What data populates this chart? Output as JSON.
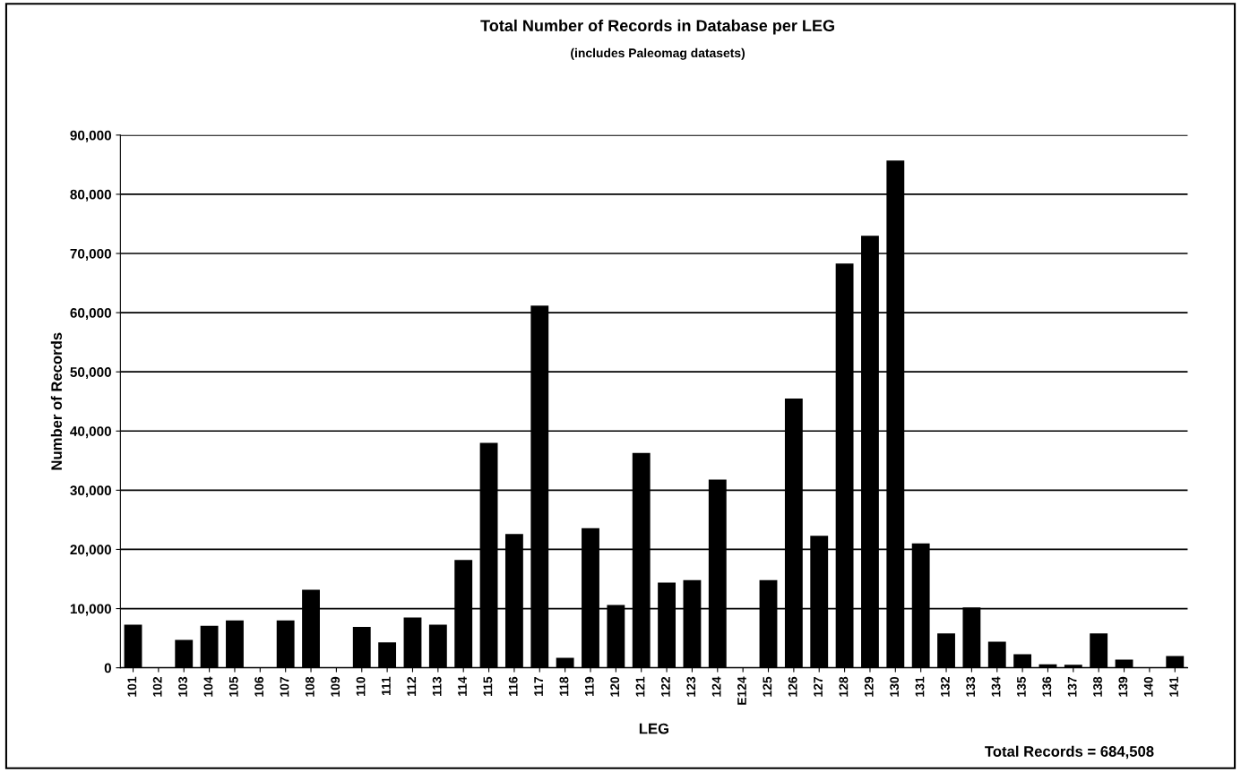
{
  "chart_data": {
    "type": "bar",
    "title": "Total Number of Records in Database per LEG",
    "subtitle": "(includes Paleomag datasets)",
    "xlabel": "LEG",
    "ylabel": "Number of Records",
    "categories": [
      "101",
      "102",
      "103",
      "104",
      "105",
      "106",
      "107",
      "108",
      "109",
      "110",
      "111",
      "112",
      "113",
      "114",
      "115",
      "116",
      "117",
      "118",
      "119",
      "120",
      "121",
      "122",
      "123",
      "124",
      "E124",
      "125",
      "126",
      "127",
      "128",
      "129",
      "130",
      "131",
      "132",
      "133",
      "134",
      "135",
      "136",
      "137",
      "138",
      "139",
      "140",
      "141"
    ],
    "values": [
      7300,
      0,
      4700,
      7100,
      8000,
      0,
      8000,
      13200,
      0,
      6900,
      4300,
      8500,
      7300,
      18200,
      38000,
      22600,
      61200,
      1700,
      23600,
      10600,
      36300,
      14400,
      14800,
      31800,
      0,
      14800,
      45500,
      22300,
      68300,
      73000,
      85700,
      21000,
      5800,
      10200,
      4400,
      2300,
      600,
      500,
      5800,
      1400,
      0,
      2000
    ],
    "color": "#000000",
    "ylim": [
      0,
      90000
    ],
    "yticks": [
      0,
      {
        "value": 10000,
        "label": "10,000"
      },
      {
        "value": 20000,
        "label": "20,000"
      },
      {
        "value": 30000,
        "label": "30,000"
      },
      {
        "value": 40000,
        "label": "40,000"
      },
      {
        "value": 50000,
        "label": "50,000"
      },
      {
        "value": 60000,
        "label": "60,000"
      },
      {
        "value": 70000,
        "label": "70,000"
      },
      {
        "value": 80000,
        "label": "80,000"
      },
      {
        "value": 90000,
        "label": "90,000"
      }
    ],
    "grid": "y",
    "annotations": [
      "Total Records = 684,508"
    ]
  }
}
